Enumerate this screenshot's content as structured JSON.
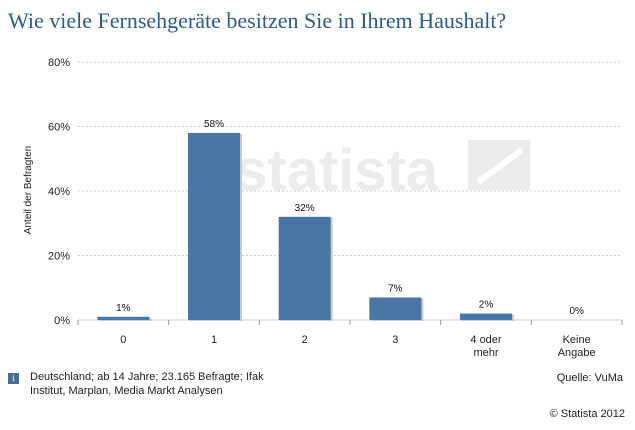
{
  "header": {
    "title": "Wie viele Fernsehgeräte besitzen Sie in Ihrem Haushalt?"
  },
  "watermark": "statista",
  "chart_data": {
    "type": "bar",
    "categories": [
      "0",
      "1",
      "2",
      "3",
      "4 oder mehr",
      "Keine Angabe"
    ],
    "category_lines": [
      [
        "0"
      ],
      [
        "1"
      ],
      [
        "2"
      ],
      [
        "3"
      ],
      [
        "4 oder",
        "mehr"
      ],
      [
        "Keine",
        "Angabe"
      ]
    ],
    "values": [
      1,
      58,
      32,
      7,
      2,
      0
    ],
    "data_labels": [
      "1%",
      "58%",
      "32%",
      "7%",
      "2%",
      "0%"
    ],
    "ylabel": "Anteil der Befragten",
    "ylim": [
      0,
      80
    ],
    "yticks": [
      0,
      20,
      40,
      60,
      80
    ],
    "ytick_labels": [
      "0%",
      "20%",
      "40%",
      "60%",
      "80%"
    ],
    "bar_color": "#4a76a6",
    "grid": true
  },
  "footer": {
    "note": "Deutschland; ab 14 Jahre; 23.165 Befragte; Ifak Institut, Marplan, Media Markt Analysen",
    "info_icon": "i",
    "source": "Quelle: VuMa",
    "copyright": "© Statista 2012"
  }
}
